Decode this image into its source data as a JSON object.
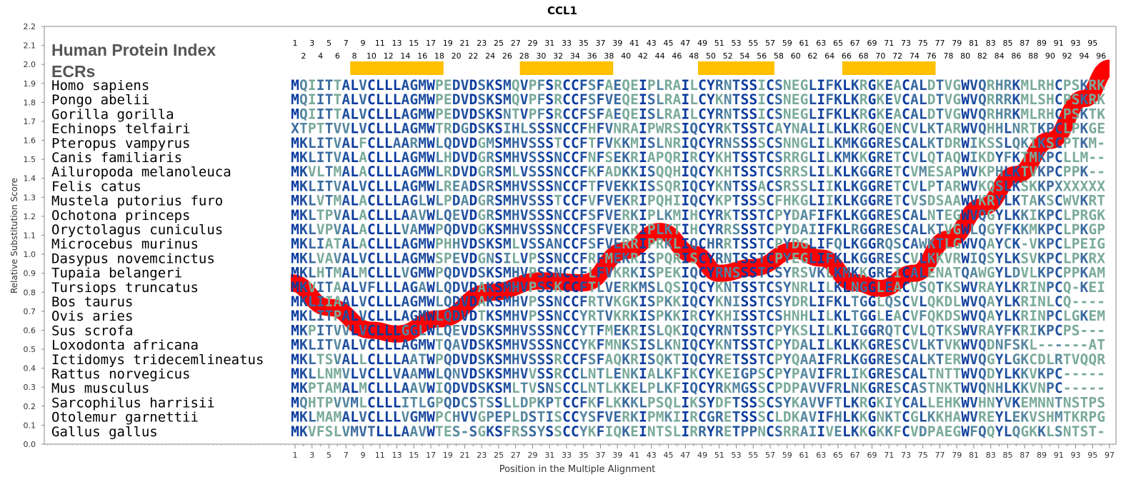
{
  "chart_data": {
    "type": "line",
    "title": "CCL1",
    "xlabel": "Position in the Multiple Alignment",
    "ylabel": "Relative Substitution Score",
    "xlim": [
      0,
      97
    ],
    "ylim": [
      0.0,
      2.2
    ],
    "yticks": [
      "0.0",
      "0.1",
      "0.2",
      "0.3",
      "0.4",
      "0.5",
      "0.6",
      "0.7",
      "0.8",
      "0.9",
      "1.0",
      "1.1",
      "1.2",
      "1.3",
      "1.4",
      "1.5",
      "1.6",
      "1.7",
      "1.8",
      "1.9",
      "2.0",
      "2.1",
      "2.2"
    ],
    "series": [
      {
        "name": "substitution score",
        "color": "#ff0000",
        "x": [
          0.5,
          5,
          10,
          13,
          18,
          24,
          30,
          35,
          40,
          44,
          48,
          51,
          55,
          60,
          63,
          67,
          70,
          74,
          78,
          82,
          86,
          90,
          94,
          97
        ],
        "y": [
          0.85,
          0.72,
          0.6,
          0.58,
          0.66,
          0.8,
          0.86,
          0.85,
          1.02,
          1.12,
          1.0,
          0.9,
          0.93,
          1.02,
          0.98,
          0.85,
          0.82,
          0.9,
          1.08,
          1.25,
          1.42,
          1.6,
          1.82,
          1.98
        ]
      }
    ],
    "header": {
      "line1": "Human Protein Index",
      "line2": "ECRs"
    },
    "ecrs": [
      [
        8,
        18
      ],
      [
        28,
        38
      ],
      [
        49,
        57
      ],
      [
        66,
        76
      ]
    ],
    "ecr_color": "#ffc000",
    "alignment": {
      "species": [
        "Homo sapiens",
        "Pongo abelii",
        "Gorilla gorilla",
        "Echinops telfairi",
        "Pteropus vampyrus",
        "Canis familiaris",
        "Ailuropoda melanoleuca",
        "Felis catus",
        "Mustela putorius furo",
        "Ochotona princeps",
        "Oryctolagus cuniculus",
        "Microcebus murinus",
        "Dasypus novemcinctus",
        "Tupaia belangeri",
        "Tursiops truncatus",
        "Bos taurus",
        "Ovis aries",
        "Sus scrofa",
        "Loxodonta africana",
        "Ictidomys tridecemlineatus",
        "Rattus norvegicus",
        "Mus musculus",
        "Sarcophilus harrisii",
        "Otolemur garnettii",
        "Gallus gallus"
      ],
      "sequences": [
        "MQIITTALVCLLLAGMWPEDVDSKSMQVPFSRCCFSFAEQEIPLRAILCYRNTSSICSNEGLIFKLKRGKEACALDTVGWVQRHRKMLRHCPSKRK",
        "MQIITTALVCLLLAGMWPEDVDSKSMQVPFSRCCFSFVEQEISLRAILCYKNTSSICSNEGLIFKLKRGKEVCALDTVGWVQRRRKMLSHCPSKRK",
        "MQIITTALVCLLLAGMWPEDVDSKSNTVPFSRCCFSFAEQEISLRAILCYRNTSSICSNEGLIFKLKRGKEACALDTVGWVQRHRKMLRHCPSKTK",
        "XTPTTVVLVCLLLAGMWTRDGDSKSIHLSSSNCCFHFVNRAIPWRSIQCYRKTSSTCAYNALILKLKRGQENCVLKTARWVQHHLNRTKPCLPKGE",
        "MKLITVALFCLLAARMWLQDVDGMSMHVSSSTCCFTFVKKMISLNRIQCYRNSSSSCSNNGLILKMKGGRESCALKTDRWIKSSLQKIKSCPTKM-",
        "MKLITVALACLLLAGMWLHDVDGRSMHVSSSNCCFNFSEKRIAPQRIRCYKHTSSTCSRRGLILKMKKGRETCVLQTAQWIKDYFKTMKPCLLM--",
        "MKVLTMALACLLLAGMWLRDVDGRSMLVSSSNCCFKFADKKISQQHIQCYKHTSSTCSRRSLILKLKGGRETCVMESAPWVKPHLKTVKPCPPK--",
        "MKLITVALVCLLLAGMWLREADSRSMHVSSSNCCFTFVEKKISSQRIQCYKNTSSACSRSSLIIKLKGGRETCVLPTARWVKQSLKSKKPXXXXXX",
        "MKLVTMALACLLLAGLWLPDADGRSMHVSSSTCCFVFVEKRIPQHIIQCYKPTSSSCFHKGLIIKLKGGRETCVSDSAAWVKRYLKTAKSCWVKRT",
        "MKLTPVALACLLLAAVWLQEVDGRSMHVSSSNCCFSFVERKIPLKMIHCYRKTSSTCPYDAFIFKLKGGRESCALNTEGWVQGYLKKIKPCLPRGK",
        "MKLVPVALACLLLVAMWPQDVDGKSMHVSSSNCCFSFVEKRIPLKTIHCYRRSSSTCPYDAIIFKLRGGRESCALKTVGWLQGYFKKMKPCLPKGP",
        "MKLIATALACLLLAGMWPHHVDSKSMLVSSANCCFSFVERRIPRKLIQCHRRTSSTCPYDGLIFQLKGGRQSCAWKTLGWVQAYCK-VKPCLPEIG",
        "MKLVAVALVCLLLAGMWSPEVDGNSILVPSSNCCFRFMEKRISPQRISCYRNTSSTCPYEGLIFKLKGGRESCVLKKVRWIQSYLKSVKPCLPKRX",
        "MKLHTMALMCLLLVGMWPQDVDSKSMHVPSSNCCFLFVKRKISPEKIQCYRNSSSTCSYRSVKLKMKKGREICALENATQAWGYLDVLKPCPPKAM",
        "MKVITAALVFLLLAGAWLQDVDAKSMHVPSSKCCFTLVERKMSLQSIQCYKNTSSTCSYNRLILKLNGGLEACVSQTKSWVRAYLKRINPCQ-KEI",
        "MKLIIAALVCLLLAGMWLQDVDAKSMHVPSSNCCFRTVKGKISPKKIQCYKNISSTCSYDRLIFKLTGGLQSCVLQKDLWVQAYLKRINLCQ----",
        "MKLITPALVCLLLAGMWLQDVDTKSMHVPSSNCCYRTVKRKISPKKIRCYKHISSTCSHNHLILKLTGGLEACVFQKDSWVQAYLKRINPCLGKEM",
        "MKPITVVLVCLLLGGLWLQEVDSKSMHVSSSNCCYTFMEKRISLQKIQCYRNTSSTCPYKSLILKLIGGRQTCVLQTKSWVRAYFKRIKPCPS---",
        "MKLITVALVCLLLAGMWTQAVDSKSMHVSSSNCCYKFMNKSISLKNIQCYKNTSSTCPYDALILKLKKGRESCVLKTVKWVQDNFSKL------AT",
        "MKLTSVALLCLLLAATWPQDVDSKSMHVSSSRCCFSFAQKRISQKTIQCYRETSSTCPYQAAIFRLKGGRESCALKTERWVQGYLGKCDLRTVQQR",
        "MKLLNMVLVCLLVAAMWLQNVDSKSMHVVSSRCCLNTLENKIALKFIKCYKEIGPSCPYPAVIFRLIKGRESCALTNTTWVQDYLKKVKPC-----",
        "MKPTAMALMCLLLAAVWIQDVDSKSMLTVSNSCCLNTLKKELPLKFIQCYRKMGSSCPDPAVVFRLNKGRESCASTNKTWVQNHLKKVNPC-----",
        "MQHTPVVMLCLLLITLGPQDCSTSSLLDPKPTCCFKFLKKKLPSQLIKSYDFTSSSCSYKAVVFTLKRGKIYCALLEHKWVHNYVKEMNNTNSTPS",
        "MKLMAMALVCLLLVGMWPCHVVGPEPLDSTISCCYSFVERKIPMKIIRCGRETSSSCLDKAVIFHLKKGNKTCGLKKHAWVREYLEKVSHMTKRPG",
        "MKVFSLVMVTLLLAAVWTES-SGKSFRSSYSSCCYKFIQKEINTSLIRRYRETPPNCSRRAIIVELKKGKKFCVDPAEGWFQQYLQGKKLSNTST-"
      ]
    },
    "residue_colors": [
      "#0a3a9e",
      "#1f4f9f",
      "#3a6aa0",
      "#5688a0",
      "#7aaa9a"
    ]
  }
}
